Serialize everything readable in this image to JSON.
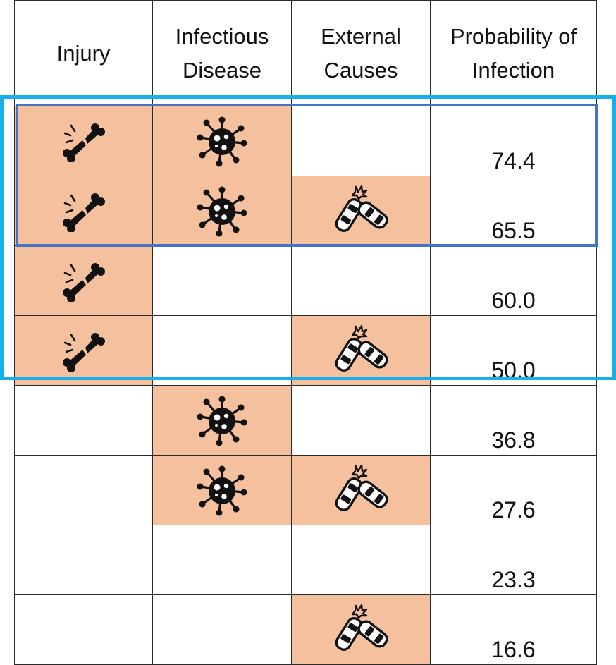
{
  "headers": {
    "injury": "Injury",
    "infectious_disease": "Infectious Disease",
    "external_causes": "External Causes",
    "probability": "Probability of Infection"
  },
  "rows": [
    {
      "injury": true,
      "infectious_disease": true,
      "external_causes": false,
      "probability": "74.4"
    },
    {
      "injury": true,
      "infectious_disease": true,
      "external_causes": true,
      "probability": "65.5"
    },
    {
      "injury": true,
      "infectious_disease": false,
      "external_causes": false,
      "probability": "60.0"
    },
    {
      "injury": true,
      "infectious_disease": false,
      "external_causes": true,
      "probability": "50.0"
    },
    {
      "injury": false,
      "infectious_disease": true,
      "external_causes": false,
      "probability": "36.8"
    },
    {
      "injury": false,
      "infectious_disease": true,
      "external_causes": true,
      "probability": "27.6"
    },
    {
      "injury": false,
      "infectious_disease": false,
      "external_causes": false,
      "probability": "23.3"
    },
    {
      "injury": false,
      "infectious_disease": false,
      "external_causes": true,
      "probability": "16.6"
    }
  ],
  "icons": {
    "injury": "broken-bone-icon",
    "infectious_disease": "virus-icon",
    "external_causes": "car-crash-icon"
  },
  "colors": {
    "active_cell": "#f5c09e",
    "highlight_outer": "#17b0ea",
    "highlight_inner": "#4472c4",
    "grid_line": "#2b2b2b"
  }
}
